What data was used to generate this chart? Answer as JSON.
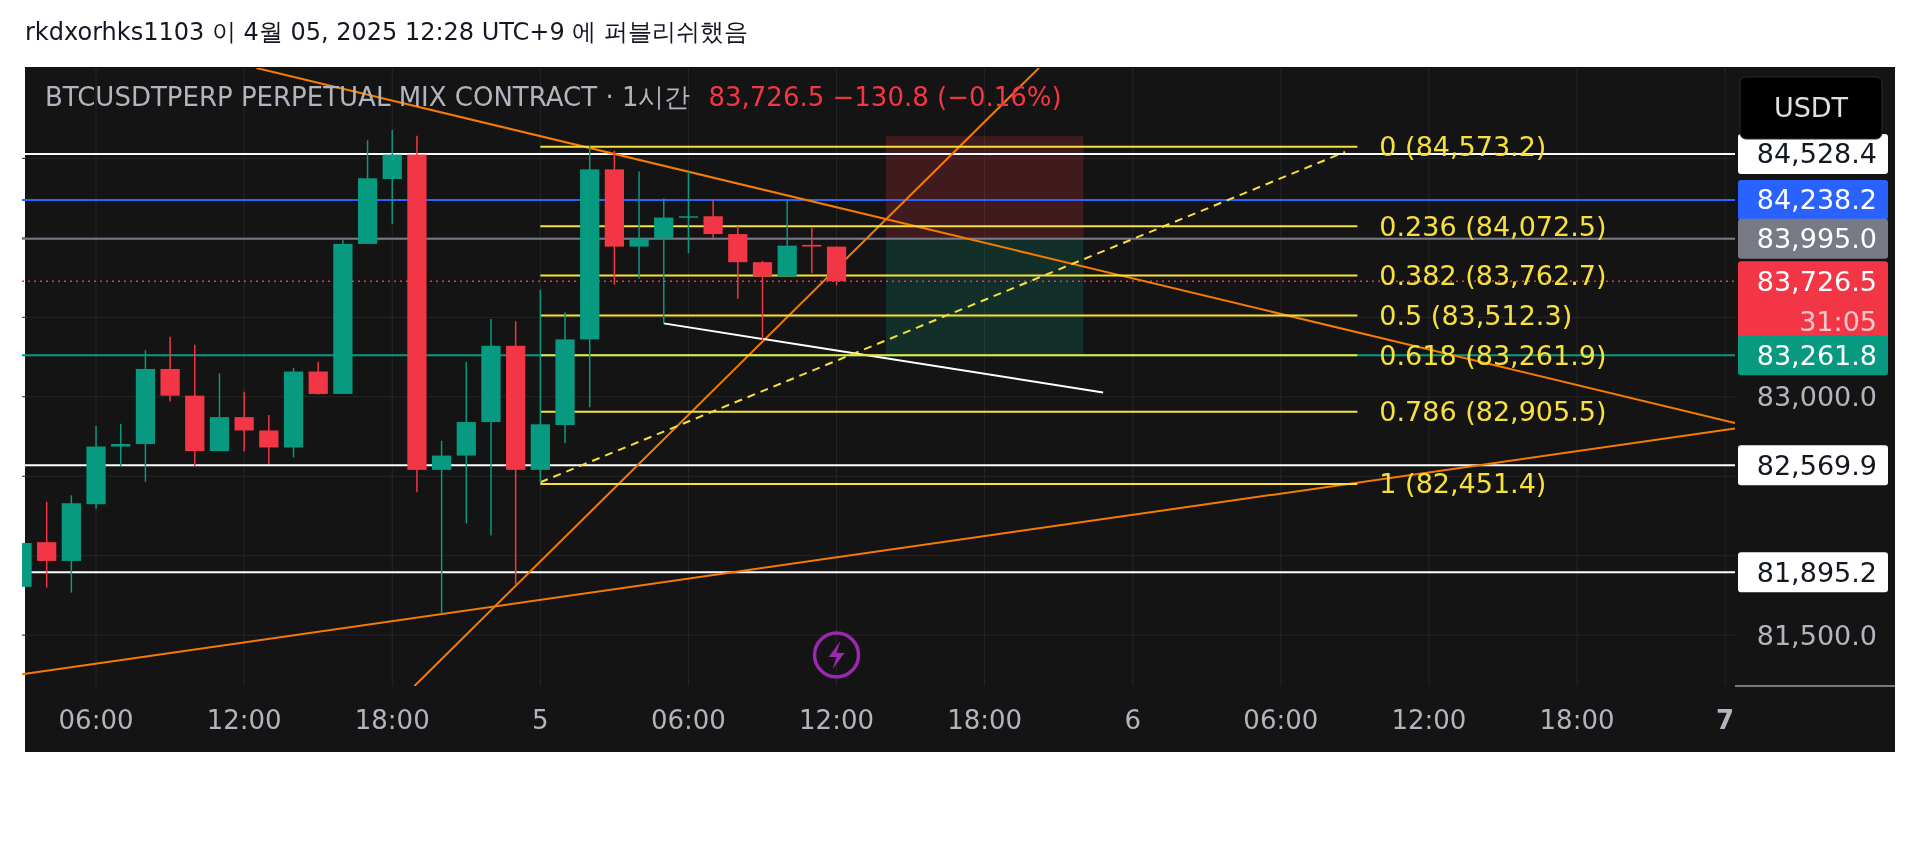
{
  "chart_data": {
    "type": "candlestick",
    "title": "rkdxorhks1103 이 4월 05, 2025 12:28 UTC+9 에 퍼블리쉬했음",
    "subtitle": "BTCUSDTPERP PERPETUAL MIX CONTRACT · 1시간",
    "ylabel": "USDT",
    "annotations": [
      "83,726.5 −130.8 (−0.16%)"
    ],
    "xlim": [
      "2025-04-04T03:00",
      "2025-04-07T00:24"
    ],
    "ylim": [
      81180,
      85069
    ],
    "xticks": [
      {
        "value": "2025-04-04T06:00",
        "label": "06:00"
      },
      {
        "value": "2025-04-04T12:00",
        "label": "12:00"
      },
      {
        "value": "2025-04-04T18:00",
        "label": "18:00"
      },
      {
        "value": "2025-04-05T00:00",
        "label": "5"
      },
      {
        "value": "2025-04-05T06:00",
        "label": "06:00"
      },
      {
        "value": "2025-04-05T12:00",
        "label": "12:00"
      },
      {
        "value": "2025-04-05T18:00",
        "label": "18:00"
      },
      {
        "value": "2025-04-06T00:00",
        "label": "6"
      },
      {
        "value": "2025-04-06T06:00",
        "label": "06:00"
      },
      {
        "value": "2025-04-06T12:00",
        "label": "12:00"
      },
      {
        "value": "2025-04-06T18:00",
        "label": "18:00"
      },
      {
        "value": "2025-04-07T00:00",
        "label": "7"
      }
    ],
    "yticks": [
      {
        "value": 81500,
        "label": "81,500.0"
      },
      {
        "value": 82000,
        "label": null
      },
      {
        "value": 82500,
        "label": null
      },
      {
        "value": 83000,
        "label": "83,000.0"
      },
      {
        "value": 83500,
        "label": null
      },
      {
        "value": 84000,
        "label": null
      },
      {
        "value": 84500,
        "label": null
      }
    ],
    "grid": true,
    "series": [
      {
        "type": "candlestick",
        "x": [
          "2025-04-04T03:00",
          "2025-04-04T04:00",
          "2025-04-04T05:00",
          "2025-04-04T06:00",
          "2025-04-04T07:00",
          "2025-04-04T08:00",
          "2025-04-04T09:00",
          "2025-04-04T10:00",
          "2025-04-04T11:00",
          "2025-04-04T12:00",
          "2025-04-04T13:00",
          "2025-04-04T14:00",
          "2025-04-04T15:00",
          "2025-04-04T16:00",
          "2025-04-04T17:00",
          "2025-04-04T18:00",
          "2025-04-04T19:00",
          "2025-04-04T20:00",
          "2025-04-04T21:00",
          "2025-04-04T22:00",
          "2025-04-04T23:00",
          "2025-04-05T00:00",
          "2025-04-05T01:00",
          "2025-04-05T02:00",
          "2025-04-05T03:00",
          "2025-04-05T04:00",
          "2025-04-05T05:00",
          "2025-04-05T06:00",
          "2025-04-05T07:00",
          "2025-04-05T08:00",
          "2025-04-05T09:00",
          "2025-04-05T10:00",
          "2025-04-05T11:00",
          "2025-04-05T12:00"
        ],
        "ohlc": [
          [
            81804,
            82080,
            81804,
            82080
          ],
          [
            82085,
            82338,
            81799,
            81967
          ],
          [
            81967,
            82380,
            81768,
            82330
          ],
          [
            82324,
            82816,
            82296,
            82687
          ],
          [
            82687,
            82830,
            82563,
            82703
          ],
          [
            82703,
            83293,
            82465,
            83175
          ],
          [
            83175,
            83378,
            82970,
            83007
          ],
          [
            83007,
            83327,
            82563,
            82658
          ],
          [
            82658,
            83147,
            82658,
            82872
          ],
          [
            82872,
            83032,
            82658,
            82788
          ],
          [
            82788,
            82886,
            82577,
            82681
          ],
          [
            82681,
            83181,
            82619,
            83159
          ],
          [
            83159,
            83220,
            83015,
            83018
          ],
          [
            83018,
            83985,
            83018,
            83962
          ],
          [
            83962,
            84614,
            83962,
            84375
          ],
          [
            84370,
            84679,
            84089,
            84524
          ],
          [
            84524,
            84642,
            82400,
            82540
          ],
          [
            82540,
            82723,
            81636,
            82630
          ],
          [
            82630,
            83220,
            82203,
            82841
          ],
          [
            82841,
            83490,
            82127,
            83321
          ],
          [
            83321,
            83476,
            81818,
            82540
          ],
          [
            82540,
            83673,
            82462,
            82827
          ],
          [
            82822,
            83532,
            82709,
            83361
          ],
          [
            83361,
            84580,
            82934,
            84431
          ],
          [
            84431,
            84549,
            83706,
            83945
          ],
          [
            83945,
            84417,
            83743,
            83996
          ],
          [
            83996,
            84249,
            83462,
            84128
          ],
          [
            84128,
            84417,
            83903,
            84136
          ],
          [
            84136,
            84240,
            83987,
            84024
          ],
          [
            84024,
            84074,
            83617,
            83847
          ],
          [
            83847,
            83855,
            83355,
            83757
          ],
          [
            83757,
            84240,
            83757,
            83951
          ],
          [
            83956,
            84066,
            83777,
            83945
          ],
          [
            83945,
            83945,
            83701,
            83726.5
          ]
        ]
      },
      {
        "type": "line",
        "color": "#f57c00",
        "x": [
          "2025-04-04T12:30",
          "2025-04-07T00:24"
        ],
        "values": [
          85069,
          82835
        ]
      },
      {
        "type": "line",
        "color": "#f57c00",
        "x": [
          "2025-04-04T03:00",
          "2025-04-07T00:24"
        ],
        "values": [
          81254,
          82801
        ]
      },
      {
        "type": "line",
        "color": "#f57c00",
        "x": [
          "2025-04-04T18:54",
          "2025-04-05T20:12"
        ],
        "values": [
          81180,
          85069
        ]
      },
      {
        "type": "line",
        "color": "#ffffff",
        "x": [
          "2025-04-05T05:00",
          "2025-04-05T22:48"
        ],
        "values": [
          83462,
          83027
        ]
      },
      {
        "type": "line",
        "color": "#f7e03c",
        "line_style": "dashed",
        "x": [
          "2025-04-05T00:00",
          "2025-04-06T08:36"
        ],
        "values": [
          82462,
          84541
        ]
      },
      {
        "type": "line",
        "color": "#f7e03c",
        "name": "0 (84,573.2)",
        "x": [
          "2025-04-05T00:00",
          "2025-04-06T09:06"
        ],
        "values": [
          84573.2,
          84573.2
        ]
      },
      {
        "type": "line",
        "color": "#f7e03c",
        "name": "0.236 (84,072.5)",
        "x": [
          "2025-04-05T00:00",
          "2025-04-06T09:06"
        ],
        "values": [
          84072.5,
          84072.5
        ]
      },
      {
        "type": "line",
        "color": "#f7e03c",
        "name": "0.382 (83,762.7)",
        "x": [
          "2025-04-05T00:00",
          "2025-04-06T09:06"
        ],
        "values": [
          83762.7,
          83762.7
        ]
      },
      {
        "type": "line",
        "color": "#f7e03c",
        "name": "0.5 (83,512.3)",
        "x": [
          "2025-04-05T00:00",
          "2025-04-06T09:06"
        ],
        "values": [
          83512.3,
          83512.3
        ]
      },
      {
        "type": "line",
        "color": "#f7e03c",
        "name": "0.618 (83,261.9)",
        "x": [
          "2025-04-05T00:00",
          "2025-04-06T09:06"
        ],
        "values": [
          83261.9,
          83261.9
        ]
      },
      {
        "type": "line",
        "color": "#f7e03c",
        "name": "0.786 (82,905.5)",
        "x": [
          "2025-04-05T00:00",
          "2025-04-06T09:06"
        ],
        "values": [
          82905.5,
          82905.5
        ]
      },
      {
        "type": "line",
        "color": "#f7e03c",
        "name": "1 (82,451.4)",
        "x": [
          "2025-04-05T00:00",
          "2025-04-06T09:06"
        ],
        "values": [
          82451.4,
          82451.4
        ]
      }
    ],
    "ref_lines": [
      {
        "axis": "y",
        "value": 84528.4,
        "label": "84,528.4",
        "color": "#ffffff"
      },
      {
        "axis": "y",
        "value": 84238.2,
        "label": "84,238.2",
        "color": "#2962ff"
      },
      {
        "axis": "y",
        "value": 83995.0,
        "label": "83,995.0",
        "color": "#787b86"
      },
      {
        "axis": "y",
        "value": 83726.5,
        "label": "83,726.5\n31:05",
        "color": "#f23645",
        "line_style": "dotted"
      },
      {
        "axis": "y",
        "value": 83261.8,
        "label": "83,261.8",
        "color": "#089981"
      },
      {
        "axis": "y",
        "value": 82569.9,
        "label": "82,569.9",
        "color": "#ffffff"
      },
      {
        "axis": "y",
        "value": 81895.2,
        "label": "81,895.2",
        "color": "#ffffff"
      }
    ],
    "bands": [
      {
        "axis": "y",
        "from": 83995.0,
        "to": 84640,
        "color": "#f23645"
      },
      {
        "axis": "y",
        "from": 83261.8,
        "to": 83995.0,
        "color": "#089981"
      }
    ]
  }
}
